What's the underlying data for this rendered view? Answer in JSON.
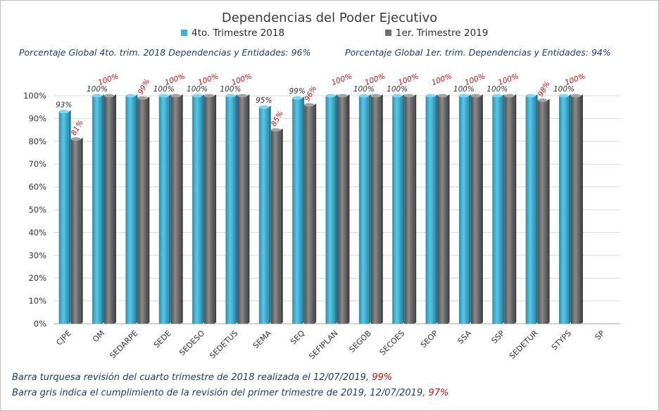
{
  "chart_data": {
    "type": "bar",
    "title": "Dependencias del Poder Ejecutivo",
    "categories": [
      "CJPE",
      "OM",
      "SEDARPE",
      "SEDE",
      "SEDESO",
      "SEDETUS",
      "SEMA",
      "SEQ",
      "SEFIPLAN",
      "SEGOB",
      "SECOES",
      "SEOP",
      "SSA",
      "SSP",
      "SEDETUR",
      "STYPS",
      "SP"
    ],
    "series": [
      {
        "name": "4to. Trimestre 2018",
        "color": "#3bb4d8",
        "values": [
          93,
          100,
          100,
          100,
          100,
          100,
          95,
          99,
          100,
          100,
          100,
          100,
          100,
          100,
          100,
          100,
          null
        ],
        "labels": [
          "93%",
          "100%",
          "",
          "100%",
          "100%",
          "100%",
          "95%",
          "99%",
          "",
          "100%",
          "100%",
          "",
          "100%",
          "100%",
          "",
          "100%",
          ""
        ]
      },
      {
        "name": "1er. Trimestre 2019",
        "color": "#6e6e6e",
        "values": [
          81,
          100,
          99,
          100,
          100,
          100,
          85,
          96,
          100,
          100,
          100,
          100,
          100,
          100,
          98,
          100,
          null
        ],
        "labels": [
          "81%",
          "100%",
          "99%",
          "100%",
          "100%",
          "100%",
          "85%",
          "96%",
          "100%",
          "100%",
          "100%",
          "100%",
          "100%",
          "100%",
          "98%",
          "100%",
          ""
        ]
      }
    ],
    "ylim": [
      0,
      100
    ],
    "yticks": [
      "0%",
      "10%",
      "20%",
      "30%",
      "40%",
      "50%",
      "60%",
      "70%",
      "80%",
      "90%",
      "100%"
    ],
    "legend_position": "top",
    "grid": true
  },
  "header": {
    "global_2018": "Porcentaje Global 4to. trim. 2018 Dependencias y Entidades: 96%",
    "global_2019": "Porcentaje Global  1er. trim. Dependencias y Entidades: 94%"
  },
  "notes": {
    "line1_text": "Barra turquesa  revisión  del  cuarto trimestre  de 2018 realizada el   12/07/2019, ",
    "line1_pct": "99%",
    "line2_text": "Barra gris indica el cumplimiento  de la revisión del primer trimestre de 2019,  12/07/2019,  ",
    "line2_pct": "97%"
  }
}
